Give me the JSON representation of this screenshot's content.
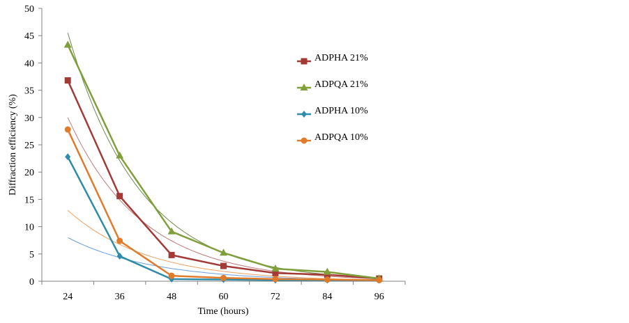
{
  "chart_data": {
    "type": "line",
    "title": "",
    "xlabel": "Time (hours)",
    "ylabel": "Diffraction efficiency (%)",
    "categories": [
      "24",
      "36",
      "48",
      "60",
      "72",
      "84",
      "96"
    ],
    "ylim": [
      0,
      50
    ],
    "yticks": [
      "0",
      "5",
      "10",
      "15",
      "20",
      "25",
      "30",
      "35",
      "40",
      "45",
      "50"
    ],
    "grid": false,
    "legend_position": "right",
    "series": [
      {
        "name": "ADPHA 21%",
        "color": "#a33a36",
        "marker": "square",
        "values": [
          36.8,
          15.6,
          4.8,
          2.8,
          1.5,
          1.2,
          0.5
        ],
        "trend": [
          30.0,
          0.45
        ]
      },
      {
        "name": "ADPQA 21%",
        "color": "#7f9f3a",
        "marker": "triangle",
        "values": [
          43.3,
          23.0,
          9.1,
          5.2,
          2.3,
          1.7,
          0.5
        ],
        "trend": [
          45.5,
          0.6
        ]
      },
      {
        "name": "ADPHA 10%",
        "color": "#2e8ca8",
        "marker": "diamond",
        "values": [
          22.8,
          4.6,
          0.4,
          0.3,
          0.2,
          0.2,
          0.2
        ],
        "trend": [
          8.0,
          0.2
        ]
      },
      {
        "name": "ADPQA 10%",
        "color": "#e07b2c",
        "marker": "circle",
        "values": [
          27.8,
          7.4,
          1.0,
          0.6,
          0.4,
          0.3,
          0.2
        ],
        "trend": [
          13.0,
          0.25
        ]
      }
    ],
    "trend_colors": [
      "#c07a78",
      "#6e8a4a",
      "#6a9ee0",
      "#f0a060"
    ]
  }
}
